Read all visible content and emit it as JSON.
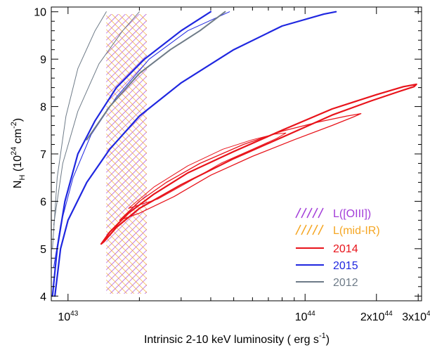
{
  "chart_data": {
    "type": "contour",
    "xlabel_main": "Intrinsic 2-10 keV luminosity ( erg s",
    "xlabel_sup": "-1",
    "xlabel_end": ")",
    "ylabel_parts": {
      "base": "N",
      "sub": "H",
      "open": " (10",
      "sup1": "24",
      "mid": " cm",
      "sup2": "-2",
      "close": ")"
    },
    "xscale": "log",
    "xlim": [
      8.5e+42,
      3.1e+44
    ],
    "ylim": [
      3.9,
      10.1
    ],
    "x_ticks": [
      {
        "value": 1e+43,
        "base": "10",
        "exp": "43"
      },
      {
        "value": 1e+44,
        "base": "10",
        "exp": "44"
      },
      {
        "value": 2e+44,
        "base": "2x10",
        "exp": "44"
      },
      {
        "value": 3e+44,
        "base": "3x10",
        "exp": "44"
      }
    ],
    "y_ticks": [
      4,
      5,
      6,
      7,
      8,
      9,
      10
    ],
    "bands": [
      {
        "name": "L([OIII])",
        "color": "#a33dd9",
        "x_range": [
          1.45e+43,
          2.15e+43
        ],
        "y_range": [
          4.05,
          9.95
        ],
        "hatch": "forward"
      },
      {
        "name": "L(mid-IR)",
        "color": "#f5a623",
        "x_range": [
          1.45e+43,
          2.15e+43
        ],
        "y_range": [
          4.05,
          9.95
        ],
        "hatch": "backward"
      }
    ],
    "series": [
      {
        "name": "2014",
        "color": "#e8141b",
        "contours": [
          {
            "level": "outer",
            "width": 2.2,
            "points": [
              [
                1.38e+43,
                5.1
              ],
              [
                1.5e+43,
                5.35
              ],
              [
                1.8e+43,
                5.75
              ],
              [
                2.3e+43,
                6.15
              ],
              [
                3.2e+43,
                6.6
              ],
              [
                5e+43,
                7.05
              ],
              [
                8e+43,
                7.5
              ],
              [
                1.3e+44,
                7.95
              ],
              [
                2e+44,
                8.25
              ],
              [
                2.6e+44,
                8.42
              ],
              [
                2.95e+44,
                8.47
              ],
              [
                2.88e+44,
                8.42
              ],
              [
                2.5e+44,
                8.32
              ],
              [
                1.9e+44,
                8.12
              ],
              [
                1.3e+44,
                7.82
              ],
              [
                8e+43,
                7.35
              ],
              [
                5e+43,
                6.9
              ],
              [
                3e+43,
                6.35
              ],
              [
                2e+43,
                5.85
              ],
              [
                1.6e+43,
                5.45
              ],
              [
                1.42e+43,
                5.15
              ],
              [
                1.38e+43,
                5.1
              ]
            ]
          },
          {
            "level": "middle",
            "width": 1.3,
            "points": [
              [
                1.65e+43,
                5.6
              ],
              [
                2e+43,
                6.0
              ],
              [
                2.6e+43,
                6.4
              ],
              [
                3.6e+43,
                6.8
              ],
              [
                5.5e+43,
                7.2
              ],
              [
                8e+43,
                7.48
              ],
              [
                1.15e+44,
                7.68
              ],
              [
                1.5e+44,
                7.8
              ],
              [
                1.72e+44,
                7.85
              ],
              [
                1.6e+44,
                7.78
              ],
              [
                1.3e+44,
                7.6
              ],
              [
                9e+43,
                7.3
              ],
              [
                6e+43,
                6.95
              ],
              [
                4e+43,
                6.55
              ],
              [
                2.8e+43,
                6.1
              ],
              [
                2e+43,
                5.75
              ],
              [
                1.65e+43,
                5.6
              ]
            ]
          },
          {
            "level": "inner",
            "width": 1.0,
            "points": [
              [
                1.8e+43,
                5.85
              ],
              [
                2.3e+43,
                6.3
              ],
              [
                3.2e+43,
                6.75
              ],
              [
                4.5e+43,
                7.1
              ],
              [
                6e+43,
                7.3
              ],
              [
                7.5e+43,
                7.42
              ],
              [
                8.3e+43,
                7.44
              ],
              [
                7.6e+43,
                7.33
              ],
              [
                6e+43,
                7.1
              ],
              [
                4.4e+43,
                6.8
              ],
              [
                3.2e+43,
                6.4
              ],
              [
                2.4e+43,
                6.05
              ],
              [
                1.8e+43,
                5.85
              ]
            ]
          }
        ]
      },
      {
        "name": "2015",
        "color": "#1f27e0",
        "contours": [
          {
            "level": "outer",
            "width": 2.2,
            "points": [
              [
                8.8e+42,
                4.0
              ],
              [
                9.3e+42,
                5.0
              ],
              [
                1e+43,
                5.6
              ],
              [
                1.2e+43,
                6.4
              ],
              [
                1.5e+43,
                7.1
              ],
              [
                2e+43,
                7.8
              ],
              [
                3e+43,
                8.5
              ],
              [
                5e+43,
                9.2
              ],
              [
                8e+43,
                9.7
              ],
              [
                1.2e+44,
                9.95
              ],
              [
                1.35e+44,
                10.0
              ]
            ]
          },
          {
            "level": "outer-left",
            "width": 2.2,
            "points": [
              [
                8.6e+42,
                4.0
              ],
              [
                9e+42,
                5.0
              ],
              [
                9.7e+42,
                6.0
              ],
              [
                1.1e+43,
                7.0
              ],
              [
                1.3e+43,
                7.7
              ],
              [
                1.6e+43,
                8.4
              ],
              [
                2.1e+43,
                9.0
              ],
              [
                3e+43,
                9.6
              ],
              [
                4e+43,
                10.0
              ]
            ]
          },
          {
            "level": "inner",
            "width": 1.0,
            "points": [
              [
                8.7e+42,
                4.6
              ],
              [
                9.3e+42,
                5.5
              ],
              [
                1.05e+43,
                6.5
              ],
              [
                1.25e+43,
                7.4
              ],
              [
                1.6e+43,
                8.2
              ],
              [
                2.2e+43,
                9.0
              ],
              [
                3.2e+43,
                9.6
              ],
              [
                4.8e+43,
                10.0
              ]
            ]
          }
        ]
      },
      {
        "name": "2012",
        "color": "#6e7b88",
        "contours": [
          {
            "level": "outer",
            "width": 2.0,
            "points": [
              [
                1.2e+43,
                7.3
              ],
              [
                1.5e+43,
                8.0
              ],
              [
                2e+43,
                8.7
              ],
              [
                2.7e+43,
                9.2
              ],
              [
                3.6e+43,
                9.6
              ],
              [
                4.6e+43,
                10.0
              ]
            ]
          },
          {
            "level": "middle",
            "width": 1.0,
            "points": [
              [
                8.7e+42,
                5.5
              ],
              [
                9.5e+42,
                6.8
              ],
              [
                1.1e+43,
                7.9
              ],
              [
                1.35e+43,
                8.9
              ],
              [
                1.7e+43,
                9.6
              ],
              [
                2e+43,
                10.0
              ]
            ]
          },
          {
            "level": "inner",
            "width": 1.0,
            "points": [
              [
                8.6e+42,
                5.0
              ],
              [
                9e+42,
                6.5
              ],
              [
                9.8e+42,
                7.8
              ],
              [
                1.1e+43,
                8.8
              ],
              [
                1.3e+43,
                9.6
              ],
              [
                1.45e+43,
                10.0
              ]
            ]
          }
        ]
      }
    ],
    "legend": {
      "placement": "bottom-right",
      "entries": [
        {
          "label": "L([OIII])",
          "color": "#a33dd9",
          "style": "hatch"
        },
        {
          "label": "L(mid-IR)",
          "color": "#f5a623",
          "style": "hatch"
        },
        {
          "label": "2014",
          "color": "#e8141b",
          "style": "line"
        },
        {
          "label": "2015",
          "color": "#1f27e0",
          "style": "line"
        },
        {
          "label": "2012",
          "color": "#6e7b88",
          "style": "line"
        }
      ]
    }
  }
}
